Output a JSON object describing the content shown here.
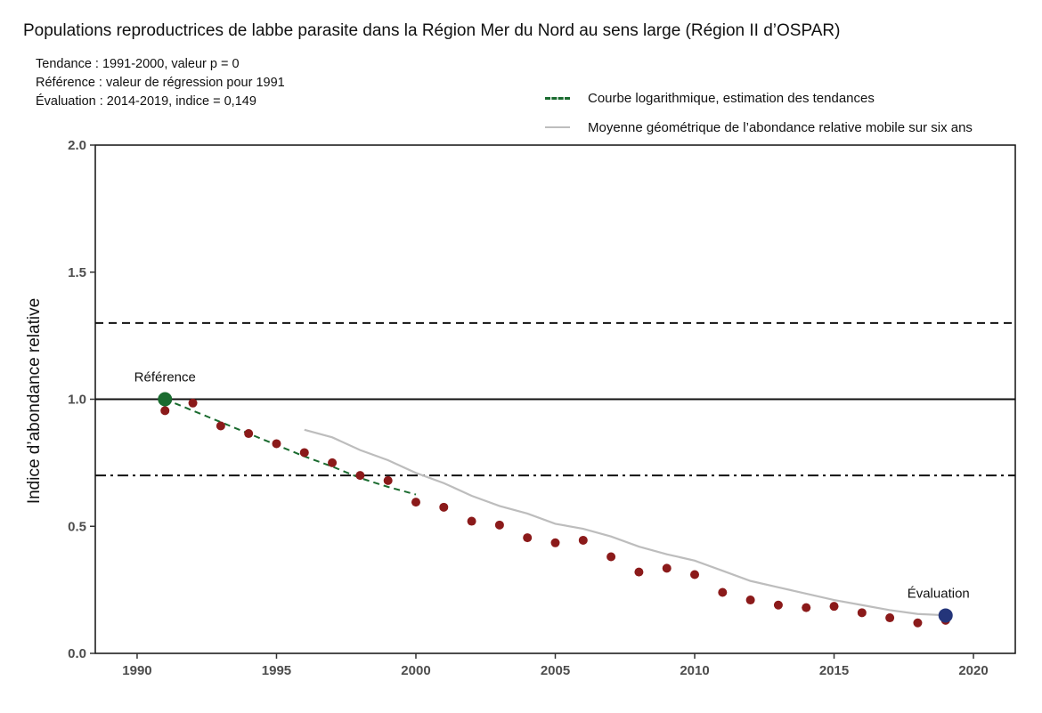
{
  "chart_data": {
    "type": "scatter",
    "title": "Populations reproductrices de labbe parasite dans la Région Mer du Nord au sens large (Région II d’OSPAR)",
    "info_lines": [
      "Tendance : 1991-2000, valeur p = 0",
      "Référence : valeur de régression pour 1991",
      "Évaluation : 2014-2019, indice = 0,149"
    ],
    "ylabel": "Indice d’abondance relative",
    "xlabel": "",
    "xlim": [
      1988.5,
      2021.5
    ],
    "ylim": [
      0,
      2.0
    ],
    "x_ticks": [
      1990,
      1995,
      2000,
      2005,
      2010,
      2015,
      2020
    ],
    "y_ticks": [
      {
        "value": 0.0,
        "label": "0.0"
      },
      {
        "value": 0.5,
        "label": "0.5"
      },
      {
        "value": 1.0,
        "label": "1.0"
      },
      {
        "value": 1.5,
        "label": "1.5"
      },
      {
        "value": 2.0,
        "label": "2.0"
      }
    ],
    "grid": false,
    "legend_position": "top-right",
    "legend": [
      {
        "label": "Courbe logarithmique, estimation des tendances",
        "style": "dashed",
        "color": "#1a6b2f"
      },
      {
        "label": "Moyenne géométrique de l’abondance relative mobile sur six ans",
        "style": "solid",
        "color": "#bdbdbd"
      }
    ],
    "reference_lines": [
      {
        "y": 1.3,
        "style": "dashed"
      },
      {
        "y": 1.0,
        "style": "solid"
      },
      {
        "y": 0.7,
        "style": "dashdot"
      }
    ],
    "series": [
      {
        "type": "scatter",
        "color": "#8b1a1a",
        "x": [
          1991,
          1992,
          1993,
          1994,
          1995,
          1996,
          1997,
          1998,
          1999,
          2000,
          2001,
          2002,
          2003,
          2004,
          2005,
          2006,
          2007,
          2008,
          2009,
          2010,
          2011,
          2012,
          2013,
          2014,
          2015,
          2016,
          2017,
          2018,
          2019
        ],
        "y": [
          0.955,
          0.985,
          0.895,
          0.865,
          0.825,
          0.79,
          0.75,
          0.7,
          0.68,
          0.595,
          0.575,
          0.52,
          0.505,
          0.455,
          0.435,
          0.445,
          0.38,
          0.32,
          0.335,
          0.31,
          0.24,
          0.21,
          0.19,
          0.18,
          0.185,
          0.16,
          0.14,
          0.12,
          0.13
        ]
      },
      {
        "type": "line",
        "style": "dashed",
        "color": "#1a6b2f",
        "x": [
          1991,
          1992,
          1993,
          1994,
          1995,
          1996,
          1997,
          1998,
          1999,
          2000
        ],
        "y": [
          1.0,
          0.955,
          0.91,
          0.865,
          0.82,
          0.775,
          0.735,
          0.69,
          0.655,
          0.625
        ]
      },
      {
        "type": "line",
        "style": "solid",
        "color": "#bdbdbd",
        "x": [
          1996,
          1997,
          1998,
          1999,
          2000,
          2001,
          2002,
          2003,
          2004,
          2005,
          2006,
          2007,
          2008,
          2009,
          2010,
          2011,
          2012,
          2013,
          2014,
          2015,
          2016,
          2017,
          2018,
          2019
        ],
        "y": [
          0.88,
          0.85,
          0.8,
          0.76,
          0.71,
          0.67,
          0.62,
          0.58,
          0.55,
          0.51,
          0.49,
          0.46,
          0.42,
          0.39,
          0.365,
          0.325,
          0.285,
          0.26,
          0.235,
          0.21,
          0.19,
          0.17,
          0.155,
          0.15
        ]
      }
    ],
    "highlight_points": [
      {
        "x": 1991,
        "y": 1.0,
        "label": "Référence",
        "color": "#1a6b2f",
        "label_side": "above"
      },
      {
        "x": 2019,
        "y": 0.149,
        "label": "Évaluation",
        "color": "#24357a",
        "label_side": "above"
      }
    ]
  }
}
